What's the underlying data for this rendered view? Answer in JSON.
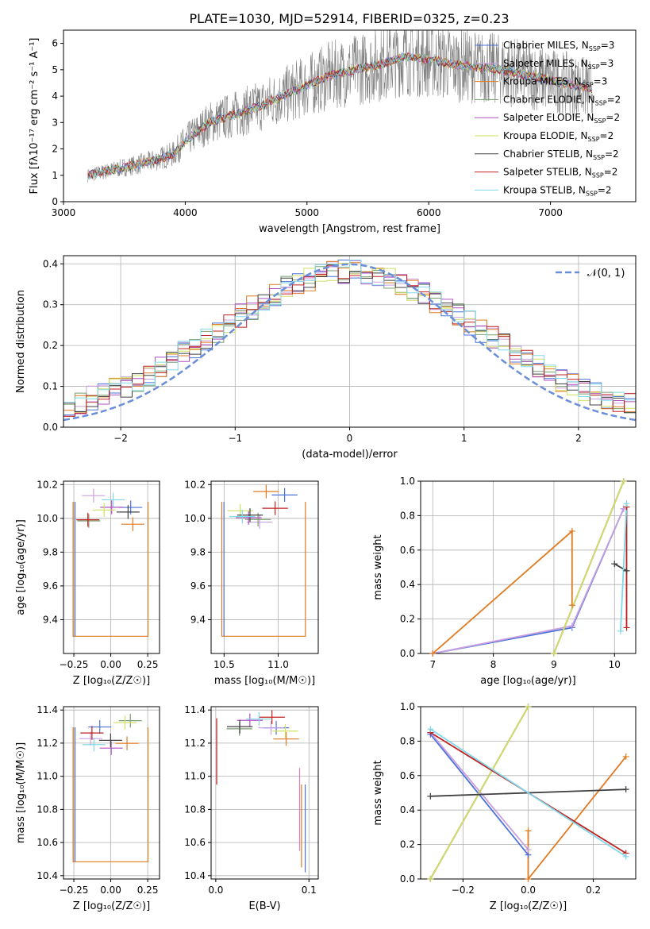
{
  "figure_title": "PLATE=1030, MJD=52914, FIBERID=0325, z=0.23",
  "colors": [
    "#4c72d8",
    "#c8a0e0",
    "#e07a20",
    "#7aa070",
    "#b050c0",
    "#d0e060",
    "#404040",
    "#c02020",
    "#80d8e8"
  ],
  "chart_data": [
    {
      "id": "spectrum",
      "type": "line",
      "title": "PLATE=1030, MJD=52914, FIBERID=0325, z=0.23",
      "xlabel": "wavelength [Angstrom, rest frame]",
      "ylabel": "Flux [fλ10⁻¹⁷ erg cm⁻² s⁻¹ A⁻¹]",
      "xlim": [
        3000,
        7700
      ],
      "ylim": [
        0,
        6.5
      ],
      "xticks": [
        "3000",
        "4000",
        "5000",
        "6000",
        "7000"
      ],
      "yticks": [
        "0",
        "1",
        "2",
        "3",
        "4",
        "5",
        "6"
      ],
      "grid": false,
      "legend_position": "top-right",
      "legend": [
        {
          "label": "Chabrier MILES, N",
          "sub": "SSP",
          "tail": "=3",
          "color": "#4c72d8"
        },
        {
          "label": "Salpeter MILES, N",
          "sub": "SSP",
          "tail": "=3",
          "color": "#c8a0e0"
        },
        {
          "label": "Kroupa MILES, N",
          "sub": "SSP",
          "tail": "=3",
          "color": "#e07a20"
        },
        {
          "label": "Chabrier ELODIE, N",
          "sub": "SSP",
          "tail": "=2",
          "color": "#7aa070"
        },
        {
          "label": "Salpeter ELODIE, N",
          "sub": "SSP",
          "tail": "=2",
          "color": "#b050c0"
        },
        {
          "label": "Kroupa ELODIE, N",
          "sub": "SSP",
          "tail": "=2",
          "color": "#d0e060"
        },
        {
          "label": "Chabrier STELIB, N",
          "sub": "SSP",
          "tail": "=2",
          "color": "#404040"
        },
        {
          "label": "Salpeter STELIB, N",
          "sub": "SSP",
          "tail": "=2",
          "color": "#c02020"
        },
        {
          "label": "Kroupa STELIB, N",
          "sub": "SSP",
          "tail": "=2",
          "color": "#80d8e8"
        }
      ],
      "continuum_x": [
        3200,
        3300,
        3500,
        3700,
        3900,
        4000,
        4200,
        4400,
        4600,
        4800,
        5000,
        5200,
        5400,
        5600,
        5800,
        6000,
        6200,
        6400,
        6600,
        6800,
        7000,
        7200,
        7400
      ],
      "continuum_y": [
        1.0,
        1.1,
        1.3,
        1.5,
        1.8,
        2.3,
        3.0,
        3.3,
        3.6,
        4.0,
        4.4,
        4.8,
        5.0,
        5.2,
        5.5,
        5.4,
        5.2,
        5.1,
        5.0,
        4.8,
        4.6,
        4.4,
        4.2
      ]
    },
    {
      "id": "residuals",
      "type": "step",
      "xlabel": "(data-model)/error",
      "ylabel": "Normed distribution",
      "xlim": [
        -2.5,
        2.5
      ],
      "ylim": [
        0,
        0.42
      ],
      "xticks": [
        "−2",
        "−1",
        "0",
        "1",
        "2"
      ],
      "yticks": [
        "0.0",
        "0.1",
        "0.2",
        "0.3",
        "0.4"
      ],
      "grid": true,
      "legend_position": "top-right",
      "legend": [
        {
          "label": "𝒩(0, 1)",
          "color": "#6a8fd8",
          "style": "dashed"
        }
      ]
    },
    {
      "id": "age-vs-Z",
      "type": "scatter",
      "xlabel": "Z [log₁₀(Z/Z☉)]",
      "ylabel": "age  [log₁₀(age/yr)]",
      "xlim": [
        -0.32,
        0.33
      ],
      "ylim": [
        9.2,
        10.22
      ],
      "xticks": [
        "−0.25",
        "0.00",
        "0.25"
      ],
      "yticks": [
        "9.4",
        "9.6",
        "9.8",
        "10.0",
        "10.2"
      ],
      "grid": true
    },
    {
      "id": "age-vs-mass",
      "type": "scatter",
      "xlabel": "mass [log₁₀(M/M☉)]",
      "ylabel": "",
      "xlim": [
        10.38,
        11.37
      ],
      "ylim": [
        9.2,
        10.22
      ],
      "xticks": [
        "10.5",
        "11.0"
      ],
      "yticks": [
        "9.4",
        "9.6",
        "9.8",
        "10.0",
        "10.2"
      ],
      "grid": true
    },
    {
      "id": "weight-vs-age",
      "type": "line",
      "xlabel": "age  [log₁₀(age/yr)]",
      "ylabel": "mass weight",
      "xlim": [
        6.8,
        10.35
      ],
      "ylim": [
        0,
        1
      ],
      "xticks": [
        "7",
        "8",
        "9",
        "10"
      ],
      "yticks": [
        "0.0",
        "0.2",
        "0.4",
        "0.6",
        "0.8",
        "1.0"
      ],
      "grid": true,
      "series": [
        {
          "name": "Chabrier MILES",
          "x": [
            7.0,
            9.3,
            10.15
          ],
          "y": [
            0.0,
            0.15,
            0.84
          ]
        },
        {
          "name": "Salpeter MILES",
          "x": [
            7.0,
            9.3,
            10.15
          ],
          "y": [
            0.0,
            0.16,
            0.84
          ]
        },
        {
          "name": "Kroupa MILES",
          "x": [
            7.0,
            9.3,
            9.3
          ],
          "y": [
            0.0,
            0.71,
            0.28
          ]
        },
        {
          "name": "Chabrier ELODIE",
          "x": [
            9.0,
            10.15
          ],
          "y": [
            0.0,
            1.0
          ]
        },
        {
          "name": "Salpeter ELODIE",
          "x": [
            9.0,
            10.15
          ],
          "y": [
            0.0,
            1.0
          ]
        },
        {
          "name": "Kroupa ELODIE",
          "x": [
            9.0,
            10.15
          ],
          "y": [
            0.0,
            1.0
          ]
        },
        {
          "name": "Chabrier STELIB",
          "x": [
            10.0,
            10.2
          ],
          "y": [
            0.52,
            0.48
          ]
        },
        {
          "name": "Salpeter STELIB",
          "x": [
            10.2,
            10.2
          ],
          "y": [
            0.85,
            0.15
          ]
        },
        {
          "name": "Kroupa STELIB",
          "x": [
            10.1,
            10.2
          ],
          "y": [
            0.13,
            0.87
          ]
        }
      ]
    },
    {
      "id": "mass-vs-Z",
      "type": "scatter",
      "xlabel": "Z [log₁₀(Z/Z☉)]",
      "ylabel": "mass [log₁₀(M/M☉)]",
      "xlim": [
        -0.32,
        0.33
      ],
      "ylim": [
        10.38,
        11.42
      ],
      "xticks": [
        "−0.25",
        "0.00",
        "0.25"
      ],
      "yticks": [
        "10.4",
        "10.6",
        "10.8",
        "11.0",
        "11.2",
        "11.4"
      ],
      "grid": true
    },
    {
      "id": "mass-vs-EBV",
      "type": "scatter",
      "xlabel": "E(B-V)",
      "ylabel": "",
      "xlim": [
        -0.005,
        0.11
      ],
      "ylim": [
        10.38,
        11.42
      ],
      "xticks": [
        "0.0",
        "0.1"
      ],
      "yticks": [
        "10.4",
        "10.6",
        "10.8",
        "11.0",
        "11.2",
        "11.4"
      ],
      "grid": true
    },
    {
      "id": "weight-vs-Z",
      "type": "line",
      "xlabel": "Z [log₁₀(Z/Z☉)]",
      "ylabel": "mass weight",
      "xlim": [
        -0.33,
        0.33
      ],
      "ylim": [
        0,
        1
      ],
      "xticks": [
        "−0.2",
        "0.0",
        "0.2"
      ],
      "yticks": [
        "0.0",
        "0.2",
        "0.4",
        "0.6",
        "0.8",
        "1.0"
      ],
      "grid": true,
      "series": [
        {
          "name": "Chabrier MILES",
          "x": [
            -0.3,
            0.0
          ],
          "y": [
            0.84,
            0.14
          ]
        },
        {
          "name": "Salpeter MILES",
          "x": [
            -0.3,
            0.0
          ],
          "y": [
            0.85,
            0.17
          ]
        },
        {
          "name": "Kroupa MILES",
          "x": [
            0.0,
            0.0,
            0.3
          ],
          "y": [
            0.28,
            0.0,
            0.71
          ]
        },
        {
          "name": "Chabrier ELODIE",
          "x": [
            -0.3,
            0.0
          ],
          "y": [
            0.0,
            1.0
          ]
        },
        {
          "name": "Salpeter ELODIE",
          "x": [
            -0.3,
            0.0
          ],
          "y": [
            0.0,
            1.0
          ]
        },
        {
          "name": "Kroupa ELODIE",
          "x": [
            -0.3,
            0.0
          ],
          "y": [
            0.0,
            1.0
          ]
        },
        {
          "name": "Chabrier STELIB",
          "x": [
            -0.3,
            0.3
          ],
          "y": [
            0.48,
            0.52
          ]
        },
        {
          "name": "Salpeter STELIB",
          "x": [
            -0.3,
            0.3
          ],
          "y": [
            0.85,
            0.15
          ]
        },
        {
          "name": "Kroupa STELIB",
          "x": [
            -0.3,
            0.3
          ],
          "y": [
            0.87,
            0.13
          ]
        }
      ]
    }
  ]
}
